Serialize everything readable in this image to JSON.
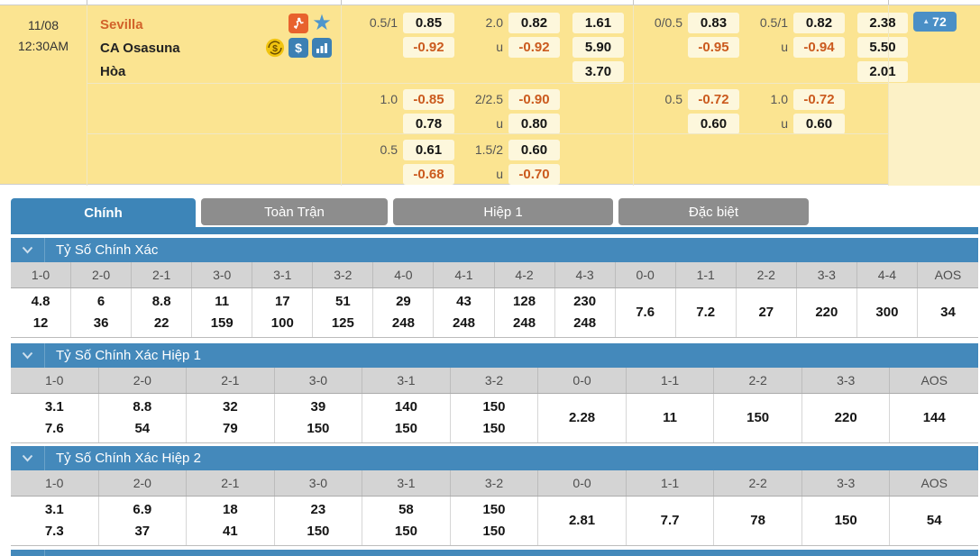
{
  "colors": {
    "panel_yellow": "#fbe491",
    "odds_chip": "#fdf7dc",
    "negative_odds_orange": "#cb5a1e",
    "home_team_orange": "#d2622a",
    "active_tab_blue": "#3d85b8",
    "section_bar_blue": "#4489bb",
    "inactive_tab_gray": "#8d8d8d",
    "badge_blue": "#4a8fc6"
  },
  "match": {
    "date": "11/08",
    "time": "12:30AM",
    "home_team": "Sevilla",
    "away_team": "CA Osasuna",
    "draw_label": "Hòa",
    "icons": [
      "live-match-icon",
      "favorite-star-icon",
      "cash-out-icon",
      "dollar-bet-icon",
      "statistics-icon"
    ],
    "more_bets_count": "72",
    "up_triangle": "▲",
    "rows": [
      {
        "left_hdp_line": "0.5/1",
        "left_hdp_top": "0.85",
        "left_hdp_bottom": "-0.92",
        "left_ou_line": "2.0",
        "left_ou_top": "0.82",
        "left_ou_u": "u",
        "left_ou_bottom": "-0.92",
        "left_1x2": {
          "home": "1.61",
          "away": "5.90",
          "draw": "3.70"
        },
        "right_hdp_line": "0/0.5",
        "right_hdp_top": "0.83",
        "right_hdp_bottom": "-0.95",
        "right_ou_line": "0.5/1",
        "right_ou_top": "0.82",
        "right_ou_u": "u",
        "right_ou_bottom": "-0.94",
        "right_1x2": {
          "home": "2.38",
          "away": "5.50",
          "draw": "2.01"
        }
      },
      {
        "left_hdp_line": "1.0",
        "left_hdp_top": "-0.85",
        "left_hdp_bottom": "0.78",
        "left_ou_line": "2/2.5",
        "left_ou_top": "-0.90",
        "left_ou_u": "u",
        "left_ou_bottom": "0.80",
        "right_hdp_line": "0.5",
        "right_hdp_top": "-0.72",
        "right_hdp_bottom": "0.60",
        "right_ou_line": "1.0",
        "right_ou_top": "-0.72",
        "right_ou_u": "u",
        "right_ou_bottom": "0.60"
      },
      {
        "left_hdp_line": "0.5",
        "left_hdp_top": "0.61",
        "left_hdp_bottom": "-0.68",
        "left_ou_line": "1.5/2",
        "left_ou_top": "0.60",
        "left_ou_u": "u",
        "left_ou_bottom": "-0.70"
      }
    ]
  },
  "tabs": [
    {
      "label": "Chính",
      "active": true
    },
    {
      "label": "Toàn Trận",
      "active": false
    },
    {
      "label": "Hiệp 1",
      "active": false
    },
    {
      "label": "Đặc biệt",
      "active": false
    }
  ],
  "score_tables": [
    {
      "title": "Tỷ Số Chính Xác",
      "columns": [
        "1-0",
        "2-0",
        "2-1",
        "3-0",
        "3-1",
        "3-2",
        "4-0",
        "4-1",
        "4-2",
        "4-3",
        "0-0",
        "1-1",
        "2-2",
        "3-3",
        "4-4",
        "AOS"
      ],
      "values": [
        [
          "4.8",
          "12"
        ],
        [
          "6",
          "36"
        ],
        [
          "8.8",
          "22"
        ],
        [
          "11",
          "159"
        ],
        [
          "17",
          "100"
        ],
        [
          "51",
          "125"
        ],
        [
          "29",
          "248"
        ],
        [
          "43",
          "248"
        ],
        [
          "128",
          "248"
        ],
        [
          "230",
          "248"
        ],
        [
          "7.6"
        ],
        [
          "7.2"
        ],
        [
          "27"
        ],
        [
          "220"
        ],
        [
          "300"
        ],
        [
          "34"
        ]
      ]
    },
    {
      "title": "Tỷ Số Chính Xác Hiệp 1",
      "columns": [
        "1-0",
        "2-0",
        "2-1",
        "3-0",
        "3-1",
        "3-2",
        "0-0",
        "1-1",
        "2-2",
        "3-3",
        "AOS"
      ],
      "values": [
        [
          "3.1",
          "7.6"
        ],
        [
          "8.8",
          "54"
        ],
        [
          "32",
          "79"
        ],
        [
          "39",
          "150"
        ],
        [
          "140",
          "150"
        ],
        [
          "150",
          "150"
        ],
        [
          "2.28"
        ],
        [
          "11"
        ],
        [
          "150"
        ],
        [
          "220"
        ],
        [
          "144"
        ]
      ]
    },
    {
      "title": "Tỷ Số Chính Xác Hiệp 2",
      "columns": [
        "1-0",
        "2-0",
        "2-1",
        "3-0",
        "3-1",
        "3-2",
        "0-0",
        "1-1",
        "2-2",
        "3-3",
        "AOS"
      ],
      "values": [
        [
          "3.1",
          "7.3"
        ],
        [
          "6.9",
          "37"
        ],
        [
          "18",
          "41"
        ],
        [
          "23",
          "150"
        ],
        [
          "58",
          "150"
        ],
        [
          "150",
          "150"
        ],
        [
          "2.81"
        ],
        [
          "7.7"
        ],
        [
          "78"
        ],
        [
          "150"
        ],
        [
          "54"
        ]
      ]
    }
  ]
}
